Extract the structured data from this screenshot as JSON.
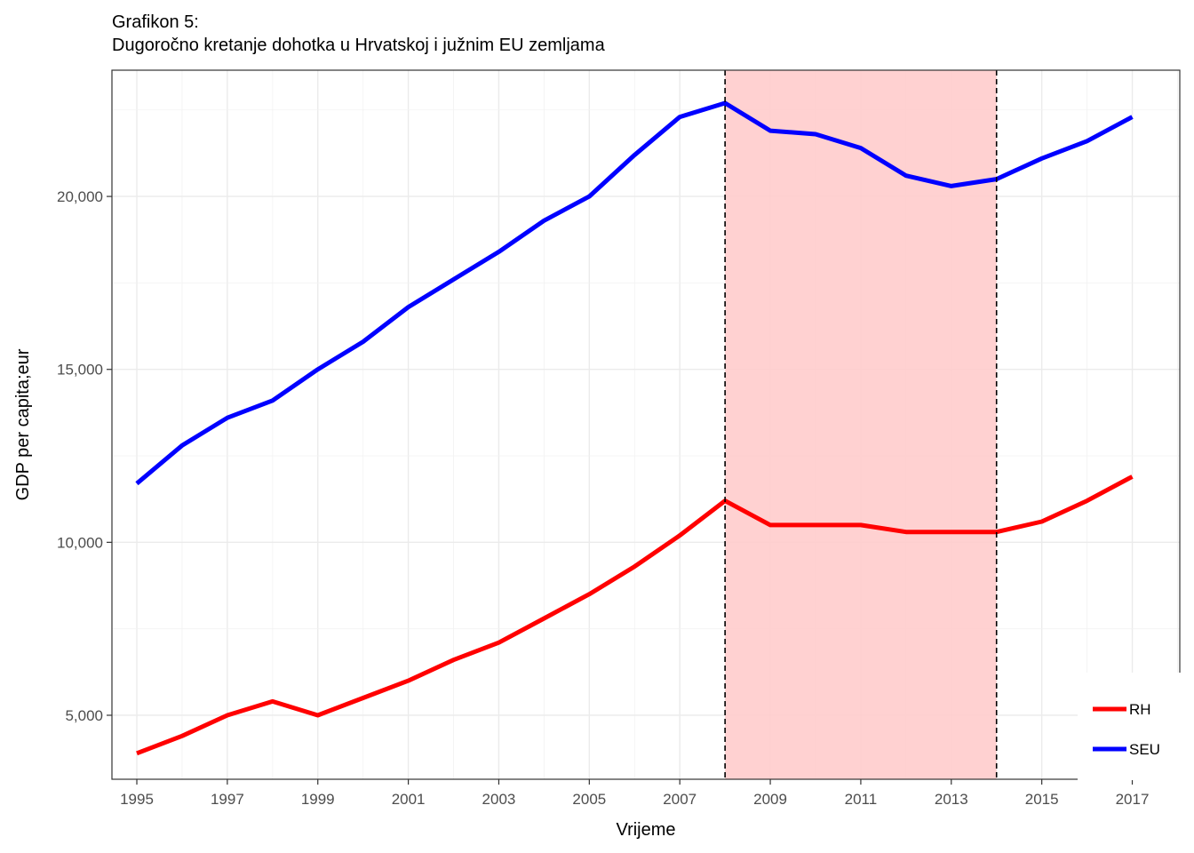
{
  "chart_data": {
    "type": "line",
    "title": "Grafikon 5:",
    "subtitle": "Dugoročno kretanje dohotka u Hrvatskoj i južnim EU zemljama",
    "xlabel": "Vrijeme",
    "ylabel": "GDP per capita;eur",
    "xlim": [
      1994.45,
      2018.05
    ],
    "ylim": [
      3150,
      23650
    ],
    "x_ticks": [
      1995,
      1997,
      1999,
      2001,
      2003,
      2005,
      2007,
      2009,
      2011,
      2013,
      2015,
      2017
    ],
    "x_tick_labels": [
      "1995",
      "1997",
      "1999",
      "2001",
      "2003",
      "2005",
      "2007",
      "2009",
      "2011",
      "2013",
      "2015",
      "2017"
    ],
    "y_ticks": [
      5000,
      10000,
      15000,
      20000
    ],
    "y_tick_labels": [
      "5,000",
      "10,000",
      "15,000",
      "20,000"
    ],
    "grid": true,
    "legend_position": "bottom-right",
    "shaded_region": {
      "x_start": 2008,
      "x_end": 2014,
      "color": "#ffcccc"
    },
    "vlines": [
      2008,
      2014
    ],
    "x": [
      1995,
      1996,
      1997,
      1998,
      1999,
      2000,
      2001,
      2002,
      2003,
      2004,
      2005,
      2006,
      2007,
      2008,
      2009,
      2010,
      2011,
      2012,
      2013,
      2014,
      2015,
      2016,
      2017
    ],
    "series": [
      {
        "name": "RH",
        "color": "#ff0000",
        "values": [
          3900,
          4400,
          5000,
          5400,
          5000,
          5500,
          6000,
          6600,
          7100,
          7800,
          8500,
          9300,
          10200,
          11200,
          10500,
          10500,
          10500,
          10300,
          10300,
          10300,
          10600,
          11200,
          11900
        ]
      },
      {
        "name": "SEU",
        "color": "#0000ff",
        "values": [
          11700,
          12800,
          13600,
          14100,
          15000,
          15800,
          16800,
          17600,
          18400,
          19300,
          20000,
          21200,
          22300,
          22700,
          21900,
          21800,
          21400,
          20600,
          20300,
          20500,
          21100,
          21600,
          22300
        ]
      }
    ]
  }
}
